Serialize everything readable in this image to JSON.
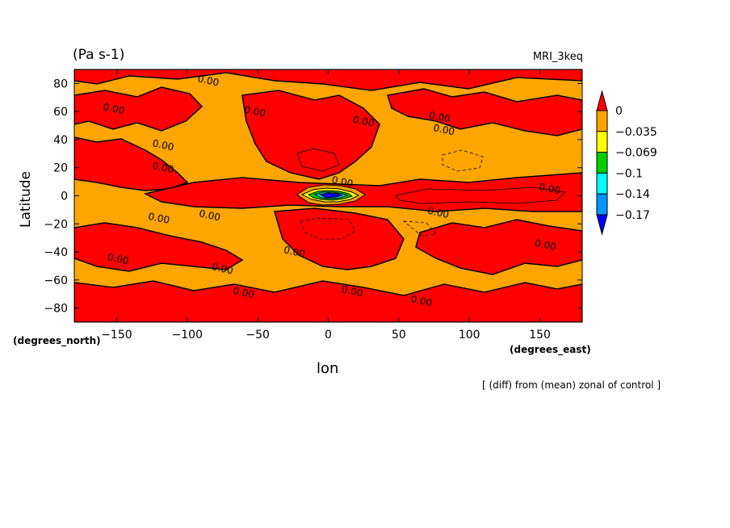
{
  "chart_data": {
    "type": "heatmap",
    "title": "(Pa s-1)",
    "model_label": "MRI_3keq",
    "xlabel": "lon",
    "ylabel": "Latitude",
    "x_unit_label": "(degrees_east)",
    "y_unit_label": "(degrees_north)",
    "note": "[ (diff) from (mean) zonal of control ]",
    "xlim": [
      -180,
      180
    ],
    "ylim": [
      -90,
      90
    ],
    "x_ticks": [
      -150,
      -100,
      -50,
      0,
      50,
      100,
      150
    ],
    "y_ticks": [
      80,
      60,
      40,
      20,
      0,
      -20,
      -40,
      -60,
      -80
    ],
    "colorbar": {
      "labels": [
        "0",
        "−0.035",
        "−0.069",
        "−0.1",
        "−0.14",
        "−0.17"
      ],
      "levels": [
        0,
        -0.035,
        -0.069,
        -0.1,
        -0.14,
        -0.17
      ],
      "colors": [
        "#ff0000",
        "#ffa500",
        "#ffff00",
        "#00d000",
        "#00ffff",
        "#0096ff",
        "#0000ff"
      ]
    },
    "fill_colors": {
      "positive": "#ff0000",
      "negative": "#ffa500",
      "strong_negative": "#0000ff"
    },
    "contour_labels": [
      {
        "text": "0.00",
        "lon": -85,
        "lat": 82
      },
      {
        "text": "0.00",
        "lon": -152,
        "lat": 62
      },
      {
        "text": "0.00",
        "lon": -52,
        "lat": 60
      },
      {
        "text": "0.00",
        "lon": 25,
        "lat": 53
      },
      {
        "text": "0.00",
        "lon": 79,
        "lat": 56
      },
      {
        "text": "0.00",
        "lon": 82,
        "lat": 47
      },
      {
        "text": "0.00",
        "lon": -117,
        "lat": 36
      },
      {
        "text": "0.00",
        "lon": -117,
        "lat": 20
      },
      {
        "text": "0.00",
        "lon": 10,
        "lat": 10
      },
      {
        "text": "0.00",
        "lon": 157,
        "lat": 5
      },
      {
        "text": "0.00",
        "lon": -120,
        "lat": -16
      },
      {
        "text": "0.00",
        "lon": -84,
        "lat": -14
      },
      {
        "text": "0.00",
        "lon": 78,
        "lat": -12
      },
      {
        "text": "0.00",
        "lon": 154,
        "lat": -35
      },
      {
        "text": "0.00",
        "lon": -149,
        "lat": -45
      },
      {
        "text": "0.00",
        "lon": -24,
        "lat": -40
      },
      {
        "text": "0.00",
        "lon": -75,
        "lat": -52
      },
      {
        "text": "0.00",
        "lon": -60,
        "lat": -69
      },
      {
        "text": "0.00",
        "lon": 17,
        "lat": -68
      },
      {
        "text": "0.00",
        "lon": 66,
        "lat": -75
      }
    ]
  }
}
